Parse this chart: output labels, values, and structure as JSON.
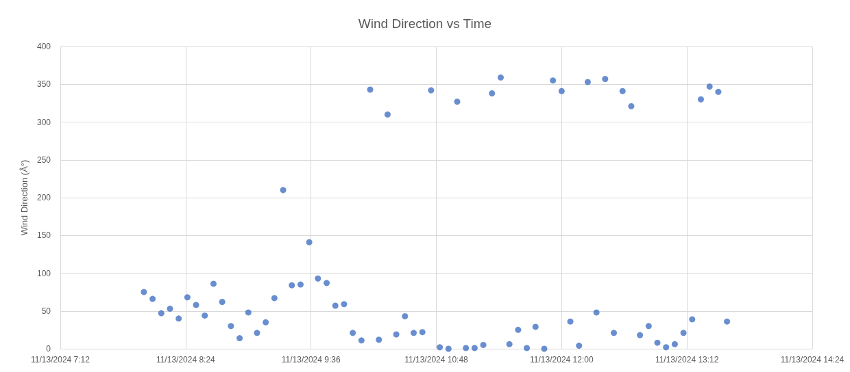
{
  "chart_data": {
    "type": "scatter",
    "title": "Wind Direction vs Time",
    "ylabel": "Wind Direction (Â°)",
    "x": [
      "2024-11-13T08:00",
      "2024-11-13T08:05",
      "2024-11-13T08:10",
      "2024-11-13T08:15",
      "2024-11-13T08:20",
      "2024-11-13T08:25",
      "2024-11-13T08:30",
      "2024-11-13T08:35",
      "2024-11-13T08:40",
      "2024-11-13T08:45",
      "2024-11-13T08:50",
      "2024-11-13T08:55",
      "2024-11-13T09:00",
      "2024-11-13T09:05",
      "2024-11-13T09:10",
      "2024-11-13T09:15",
      "2024-11-13T09:20",
      "2024-11-13T09:25",
      "2024-11-13T09:30",
      "2024-11-13T09:35",
      "2024-11-13T09:40",
      "2024-11-13T09:45",
      "2024-11-13T09:50",
      "2024-11-13T09:55",
      "2024-11-13T10:00",
      "2024-11-13T10:05",
      "2024-11-13T10:10",
      "2024-11-13T10:15",
      "2024-11-13T10:20",
      "2024-11-13T10:25",
      "2024-11-13T10:30",
      "2024-11-13T10:35",
      "2024-11-13T10:40",
      "2024-11-13T10:45",
      "2024-11-13T10:50",
      "2024-11-13T10:55",
      "2024-11-13T11:00",
      "2024-11-13T11:05",
      "2024-11-13T11:10",
      "2024-11-13T11:15",
      "2024-11-13T11:20",
      "2024-11-13T11:25",
      "2024-11-13T11:30",
      "2024-11-13T11:35",
      "2024-11-13T11:40",
      "2024-11-13T11:45",
      "2024-11-13T11:50",
      "2024-11-13T11:55",
      "2024-11-13T12:00",
      "2024-11-13T12:05",
      "2024-11-13T12:10",
      "2024-11-13T12:15",
      "2024-11-13T12:20",
      "2024-11-13T12:25",
      "2024-11-13T12:30",
      "2024-11-13T12:35",
      "2024-11-13T12:40",
      "2024-11-13T12:45",
      "2024-11-13T12:50",
      "2024-11-13T12:55",
      "2024-11-13T13:00",
      "2024-11-13T13:05",
      "2024-11-13T13:10",
      "2024-11-13T13:15",
      "2024-11-13T13:20",
      "2024-11-13T13:25",
      "2024-11-13T13:30",
      "2024-11-13T13:35"
    ],
    "values": [
      75,
      66,
      47,
      53,
      40,
      68,
      58,
      44,
      86,
      62,
      30,
      14,
      48,
      21,
      35,
      67,
      210,
      84,
      85,
      141,
      93,
      87,
      57,
      59,
      21,
      11,
      343,
      12,
      310,
      19,
      43,
      21,
      22,
      342,
      2,
      0,
      327,
      1,
      1,
      5,
      338,
      359,
      6,
      25,
      1,
      29,
      0,
      355,
      341,
      36,
      4,
      353,
      48,
      357,
      21,
      341,
      321,
      18,
      30,
      8,
      2,
      6,
      21,
      39,
      330,
      347,
      340,
      36
    ],
    "color": "#4472c4",
    "marker": "circle",
    "grid": true,
    "xlim": [
      "2024-11-13T07:12",
      "2024-11-13T14:24"
    ],
    "xticks": [
      {
        "value": "2024-11-13T07:12",
        "label": "11/13/2024 7:12"
      },
      {
        "value": "2024-11-13T08:24",
        "label": "11/13/2024 8:24"
      },
      {
        "value": "2024-11-13T09:36",
        "label": "11/13/2024 9:36"
      },
      {
        "value": "2024-11-13T10:48",
        "label": "11/13/2024 10:48"
      },
      {
        "value": "2024-11-13T12:00",
        "label": "11/13/2024 12:00"
      },
      {
        "value": "2024-11-13T13:12",
        "label": "11/13/2024 13:12"
      },
      {
        "value": "2024-11-13T14:24",
        "label": "11/13/2024 14:24"
      }
    ],
    "ylim": [
      0,
      400
    ],
    "yticks": [
      0,
      50,
      100,
      150,
      200,
      250,
      300,
      350,
      400
    ]
  }
}
